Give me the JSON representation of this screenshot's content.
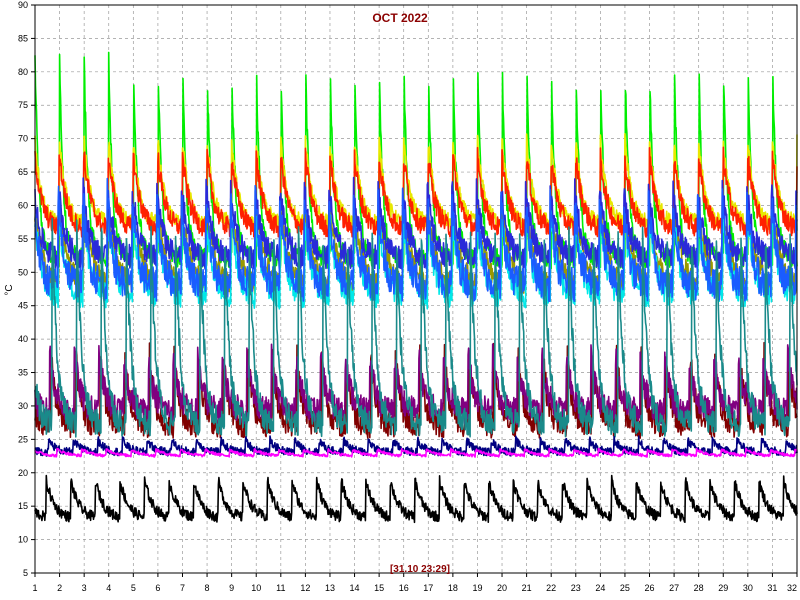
{
  "chart_data": {
    "type": "line",
    "title": "OCT 2022",
    "ylabel": "°C",
    "xlabel": "",
    "timestamp_label": "[31.10 23:29]",
    "ylim": [
      5,
      90
    ],
    "xlim": [
      1,
      32
    ],
    "yticks": [
      5,
      10,
      15,
      20,
      25,
      30,
      35,
      40,
      45,
      50,
      55,
      60,
      65,
      70,
      75,
      80,
      85,
      90
    ],
    "xticks": [
      1,
      2,
      3,
      4,
      5,
      6,
      7,
      8,
      9,
      10,
      11,
      12,
      13,
      14,
      15,
      16,
      17,
      18,
      19,
      20,
      21,
      22,
      23,
      24,
      25,
      26,
      27,
      28,
      29,
      30,
      31,
      32
    ],
    "grid": true,
    "series": [
      {
        "color": "#00ee00",
        "base": 52,
        "peak": 82,
        "tau": 0.16,
        "phase": 0.0,
        "noise": 1.5
      },
      {
        "color": "#e8e800",
        "base": 57,
        "peak": 70,
        "tau": 0.28,
        "phase": 0.01,
        "noise": 1.2
      },
      {
        "color": "#ff2000",
        "base": 56,
        "peak": 68,
        "tau": 0.32,
        "phase": 0.02,
        "noise": 1.5
      },
      {
        "color": "#999900",
        "base": 47,
        "peak": 60,
        "tau": 0.4,
        "phase": 0.03,
        "noise": 1.5
      },
      {
        "color": "#00e8e8",
        "base": 46,
        "peak": 59,
        "tau": 0.3,
        "phase": 0.04,
        "noise": 2.0
      },
      {
        "color": "#2a2ad8",
        "base": 52,
        "peak": 63,
        "tau": 0.26,
        "phase": 0.05,
        "noise": 1.8
      },
      {
        "color": "#1a5cff",
        "base": 48,
        "peak": 62,
        "tau": 0.22,
        "phase": 0.06,
        "noise": 2.5
      },
      {
        "color": "#800000",
        "base": 27,
        "peak": 38,
        "tau": 0.22,
        "phase": 0.35,
        "noise": 2.0
      },
      {
        "color": "#800080",
        "base": 29,
        "peak": 38,
        "tau": 0.25,
        "phase": 0.4,
        "noise": 2.0
      },
      {
        "color": "#1a8a8a",
        "base": 27,
        "peak": 58,
        "tau": 0.2,
        "phase": 0.3,
        "noise": 2.0
      },
      {
        "color": "#000080",
        "base": 23,
        "peak": 25,
        "tau": 0.3,
        "phase": 0.45,
        "noise": 0.6
      },
      {
        "color": "#ff00ff",
        "base": 22.4,
        "peak": 23.5,
        "tau": 0.5,
        "phase": 0.1,
        "noise": 0.2
      },
      {
        "color": "#000000",
        "base": 13,
        "peak": 19,
        "tau": 0.35,
        "phase": 0.55,
        "noise": 0.8
      }
    ]
  }
}
